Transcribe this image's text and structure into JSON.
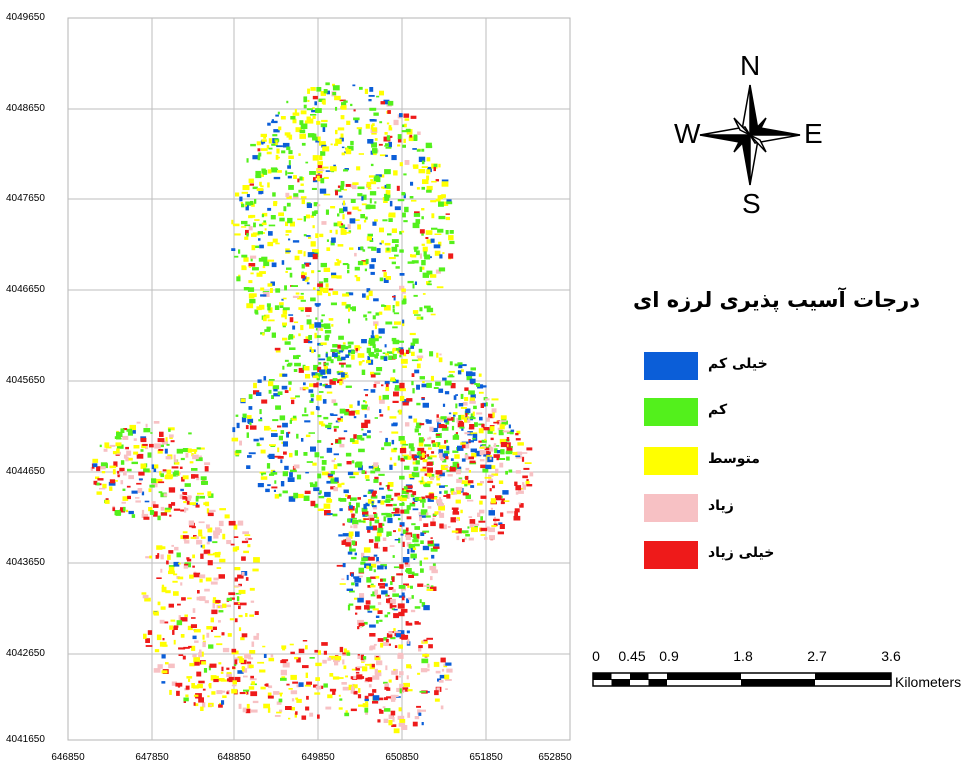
{
  "map": {
    "y_ticks": [
      "4049650",
      "4048650",
      "4047650",
      "4046650",
      "4045650",
      "4044650",
      "4043650",
      "4042650",
      "4041650"
    ],
    "x_ticks": [
      "646850",
      "647850",
      "648850",
      "649850",
      "650850",
      "651850",
      "652850"
    ],
    "grid": true
  },
  "compass": {
    "north": "N",
    "south": "S",
    "east": "E",
    "west": "W"
  },
  "legend": {
    "title": "درجات آسیب پذیری لرزه ای",
    "items": [
      {
        "label": "خیلی کم",
        "color": "#0b5ed8"
      },
      {
        "label": "کم",
        "color": "#53f01c"
      },
      {
        "label": "متوسط",
        "color": "#ffff00"
      },
      {
        "label": "زیاد",
        "color": "#f7c1c4"
      },
      {
        "label": "خیلی زیاد",
        "color": "#ee1a1a"
      }
    ]
  },
  "scale": {
    "labels": [
      "0",
      "0.45",
      "0.9",
      "1.8",
      "2.7",
      "3.6"
    ],
    "units": "Kilometers"
  }
}
